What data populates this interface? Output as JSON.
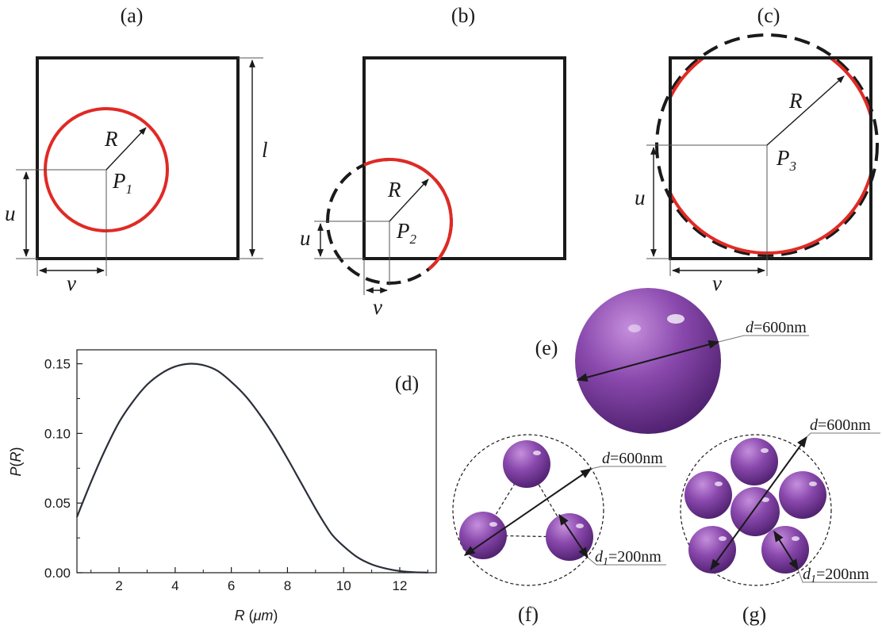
{
  "panels": {
    "a": {
      "label": "(a)",
      "radius": "R",
      "center": "P",
      "center_sub": "1",
      "dim_v": "v",
      "dim_u": "u",
      "dim_l": "l"
    },
    "b": {
      "label": "(b)",
      "radius": "R",
      "center": "P",
      "center_sub": "2",
      "dim_v": "v",
      "dim_u": "u"
    },
    "c": {
      "label": "(c)",
      "radius": "R",
      "center": "P",
      "center_sub": "3",
      "dim_v": "v",
      "dim_u": "u"
    },
    "d": {
      "label": "(d)"
    },
    "e": {
      "label": "(e)",
      "dim_var": "d",
      "dim_value": "=600nm"
    },
    "f": {
      "label": "(f)",
      "outer_var": "d",
      "outer_value": "=600nm",
      "inner_var": "d",
      "inner_sub": "1",
      "inner_value": "=200nm"
    },
    "g": {
      "label": "(g)",
      "outer_var": "d",
      "outer_value": "=600nm",
      "inner_var": "d",
      "inner_sub": "1",
      "inner_value": "=200nm"
    }
  },
  "colors": {
    "circle": "#e02a25",
    "frame": "#1a1a1a",
    "sphere": "#7b3f9e",
    "curve": "#2a2f3a"
  },
  "chart_data": {
    "type": "line",
    "ylabel_var": "P",
    "ylabel_arg": "R",
    "xlabel_var": "R",
    "xlabel_unit": "μm",
    "xlim": [
      0.5,
      13.3
    ],
    "ylim": [
      0,
      0.16
    ],
    "xticks": [
      2,
      4,
      6,
      8,
      10,
      12
    ],
    "xtick_labels": [
      "2",
      "4",
      "6",
      "8",
      "10",
      "12"
    ],
    "yticks": [
      0,
      0.05,
      0.1,
      0.15
    ],
    "ytick_labels": [
      "0.00",
      "0.05",
      "0.10",
      "0.15"
    ],
    "series": [
      {
        "x": [
          0.5,
          1,
          1.5,
          2,
          2.5,
          3,
          3.5,
          4,
          4.5,
          5,
          5.5,
          6,
          6.5,
          7,
          7.5,
          8,
          8.5,
          9,
          9.3,
          9.6,
          10,
          10.5,
          11,
          11.5,
          12,
          12.5,
          13
        ],
        "y": [
          0.04,
          0.065,
          0.088,
          0.108,
          0.123,
          0.135,
          0.143,
          0.148,
          0.15,
          0.149,
          0.145,
          0.137,
          0.127,
          0.114,
          0.099,
          0.082,
          0.064,
          0.046,
          0.036,
          0.027,
          0.019,
          0.011,
          0.006,
          0.003,
          0.0012,
          0.0004,
          0.0001
        ]
      }
    ]
  }
}
